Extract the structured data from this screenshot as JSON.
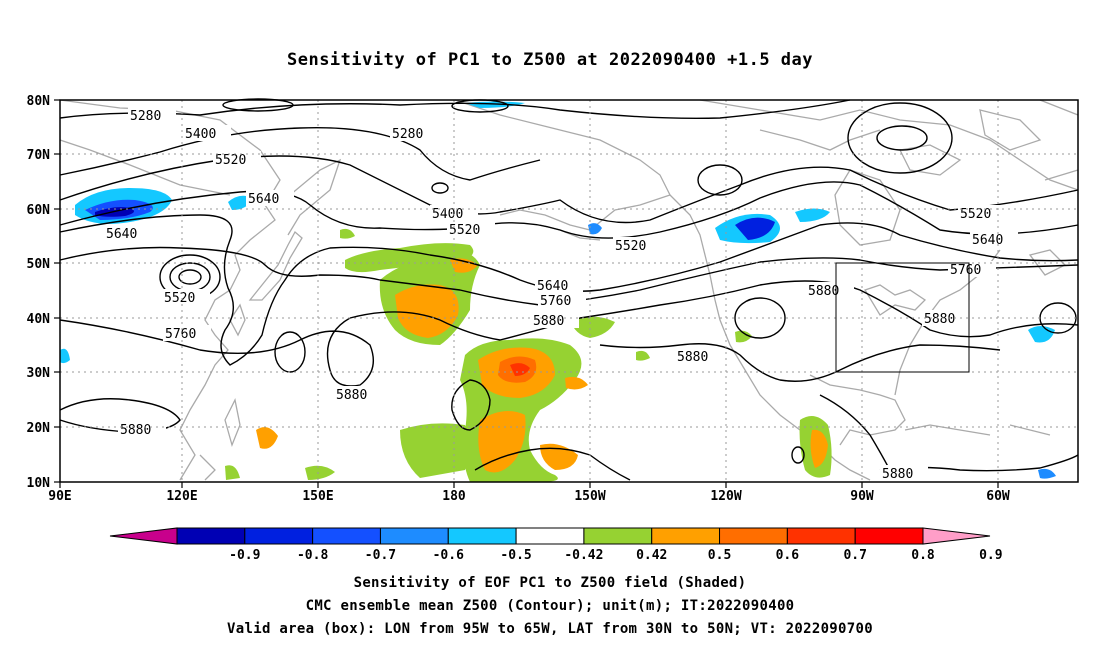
{
  "title": "Sensitivity of PC1 to Z500 at 2022090400 +1.5 day",
  "lat_labels": [
    "80N",
    "70N",
    "60N",
    "50N",
    "40N",
    "30N",
    "20N",
    "10N"
  ],
  "lon_labels": [
    "90E",
    "120E",
    "150E",
    "180",
    "150W",
    "120W",
    "90W",
    "60W"
  ],
  "contour_labels": [
    "5280",
    "5400",
    "5520",
    "5640",
    "5760",
    "5880"
  ],
  "colorbar": {
    "tick_labels": [
      "-0.9",
      "-0.8",
      "-0.7",
      "-0.6",
      "-0.5",
      "-0.42",
      "0.42",
      "0.5",
      "0.6",
      "0.7",
      "0.8",
      "0.9"
    ],
    "colors": [
      "#c8008c",
      "#0000b4",
      "#0020e0",
      "#1450ff",
      "#1e8cff",
      "#14c8ff",
      "#ffffff",
      "#96d232",
      "#ffa000",
      "#ff6e00",
      "#ff3200",
      "#ff0000",
      "#ff9ec8"
    ]
  },
  "valid_box": {
    "lon_from": "95W",
    "lon_to": "65W",
    "lat_from": "30N",
    "lat_to": "50N"
  },
  "captions": [
    "Sensitivity of EOF PC1 to Z500 field (Shaded)",
    "CMC ensemble mean Z500 (Contour); unit(m); IT:2022090400",
    "Valid area (box): LON from 95W to 65W, LAT from 30N to 50N; VT: 2022090700"
  ]
}
